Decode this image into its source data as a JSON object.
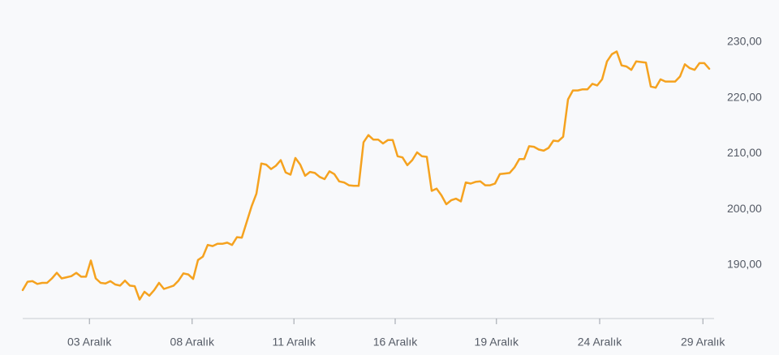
{
  "chart_data": {
    "type": "line",
    "color": "#f5a21f",
    "grid": false,
    "xlim": [
      0,
      141
    ],
    "xticks": [
      {
        "value": 13.7,
        "label": "03 Aralık"
      },
      {
        "value": 34.8,
        "label": "08 Aralık"
      },
      {
        "value": 55.7,
        "label": "11 Aralık"
      },
      {
        "value": 76.5,
        "label": "16 Aralık"
      },
      {
        "value": 97.3,
        "label": "19 Aralık"
      },
      {
        "value": 118.5,
        "label": "24 Aralık"
      },
      {
        "value": 139.7,
        "label": "29 Aralık"
      }
    ],
    "ylim": [
      180.4,
      232
    ],
    "yticks": [
      {
        "value": 190,
        "label": "190,00"
      },
      {
        "value": 200,
        "label": "200,00"
      },
      {
        "value": 210,
        "label": "210,00"
      },
      {
        "value": 220,
        "label": "220,00"
      },
      {
        "value": 230,
        "label": "230,00"
      }
    ],
    "values": [
      185.5,
      187.0,
      187.1,
      186.6,
      186.8,
      186.8,
      187.6,
      188.6,
      187.6,
      187.8,
      188.0,
      188.6,
      187.9,
      187.9,
      190.8,
      187.6,
      186.8,
      186.7,
      187.1,
      186.5,
      186.3,
      187.2,
      186.3,
      186.2,
      183.8,
      185.2,
      184.5,
      185.5,
      186.8,
      185.7,
      186.0,
      186.3,
      187.2,
      188.5,
      188.3,
      187.5,
      190.9,
      191.5,
      193.6,
      193.4,
      193.8,
      193.8,
      194.0,
      193.6,
      195.0,
      194.9,
      197.7,
      200.5,
      202.8,
      208.2,
      208.0,
      207.2,
      207.8,
      208.8,
      206.6,
      206.2,
      209.2,
      208.0,
      206.0,
      206.7,
      206.5,
      205.8,
      205.4,
      206.8,
      206.3,
      205.0,
      204.8,
      204.3,
      204.2,
      204.2,
      212.0,
      213.3,
      212.5,
      212.5,
      211.8,
      212.4,
      212.4,
      209.5,
      209.3,
      207.9,
      208.8,
      210.2,
      209.5,
      209.4,
      203.3,
      203.7,
      202.5,
      200.9,
      201.6,
      201.9,
      201.4,
      204.8,
      204.6,
      204.9,
      205.0,
      204.3,
      204.3,
      204.6,
      206.3,
      206.4,
      206.5,
      207.5,
      209.0,
      209.0,
      211.3,
      211.2,
      210.7,
      210.5,
      211.0,
      212.3,
      212.2,
      213.0,
      219.7,
      221.3,
      221.3,
      221.5,
      221.5,
      222.5,
      222.2,
      223.3,
      226.5,
      227.8,
      228.3,
      225.8,
      225.6,
      225.0,
      226.5,
      226.4,
      226.3,
      222.0,
      221.8,
      223.3,
      222.9,
      222.9,
      222.9,
      223.8,
      226.0,
      225.3,
      225.0,
      226.2,
      226.2,
      225.2
    ]
  }
}
